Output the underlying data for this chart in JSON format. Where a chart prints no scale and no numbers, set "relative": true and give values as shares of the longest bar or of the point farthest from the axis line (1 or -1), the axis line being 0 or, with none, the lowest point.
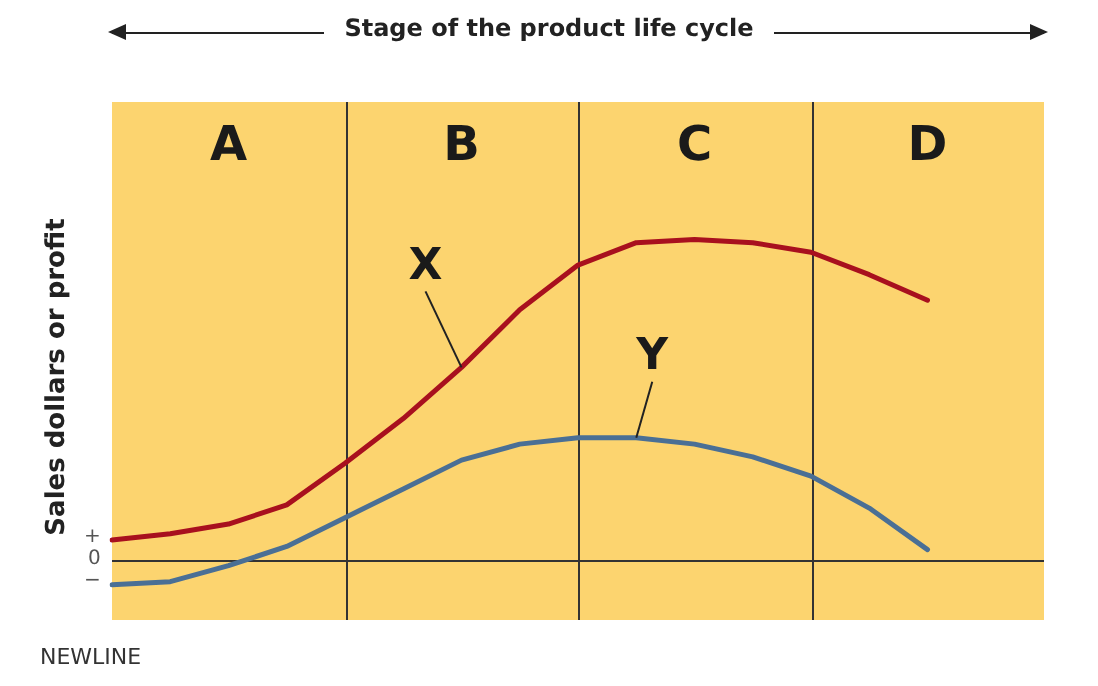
{
  "chart_data": {
    "type": "line",
    "relative": true,
    "ylabel": "Sales dollars or profit",
    "categories": [
      null,
      null,
      null,
      null,
      null,
      null,
      null,
      null,
      null,
      null,
      null,
      null,
      null,
      null,
      null,
      null,
      null
    ],
    "legend": false,
    "marker": "none",
    "line_style": "solid",
    "grid": "x",
    "series": [
      {
        "name": "X",
        "color": "#a8101e",
        "values": [
          0.06,
          0.08,
          0.11,
          0.17,
          0.3,
          0.44,
          0.6,
          0.78,
          0.92,
          0.99,
          1,
          0.99,
          0.96,
          0.89,
          0.81,
          null,
          null
        ]
      },
      {
        "name": "Y",
        "color": "#4a6f95",
        "values": [
          -0.08,
          -0.07,
          -0.02,
          0.04,
          0.13,
          0.22,
          0.31,
          0.36,
          0.38,
          0.38,
          0.36,
          0.32,
          0.26,
          0.16,
          0.03,
          null,
          null
        ]
      }
    ],
    "annotations": [
      "Stage of the product life cycle",
      "A",
      "B",
      "C",
      "D",
      "+",
      "0",
      "−",
      "NEWLINE"
    ]
  }
}
